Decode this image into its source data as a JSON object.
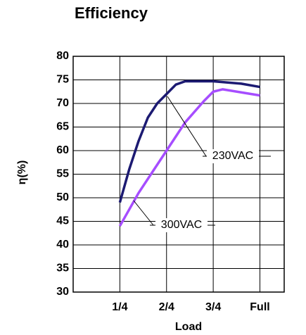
{
  "chart_data": {
    "type": "line",
    "title": "Efficiency",
    "xlabel": "Load",
    "ylabel": "η(%)",
    "xlim": [
      0,
      1.13
    ],
    "ylim": [
      30,
      80
    ],
    "xticks": [
      {
        "value": 0.25,
        "label": "1/4"
      },
      {
        "value": 0.5,
        "label": "2/4"
      },
      {
        "value": 0.75,
        "label": "3/4"
      },
      {
        "value": 1,
        "label": "Full"
      }
    ],
    "yticks": [
      30,
      35,
      40,
      45,
      50,
      55,
      60,
      65,
      70,
      75,
      80
    ],
    "grid": true,
    "series": [
      {
        "name": "230VAC",
        "color": "#1c1a72",
        "x": [
          0.25,
          0.3,
          0.35,
          0.4,
          0.45,
          0.5,
          0.55,
          0.6,
          0.75,
          0.9,
          1.0
        ],
        "values": [
          49,
          56,
          62,
          67,
          70,
          72,
          74,
          74.7,
          74.7,
          74.2,
          73.5
        ]
      },
      {
        "name": "300VAC",
        "color": "#a64dff",
        "x": [
          0.25,
          0.35,
          0.5,
          0.6,
          0.7,
          0.75,
          0.8,
          1.0
        ],
        "values": [
          44,
          51,
          60,
          66,
          70.5,
          72.5,
          73,
          71.7
        ]
      }
    ]
  }
}
